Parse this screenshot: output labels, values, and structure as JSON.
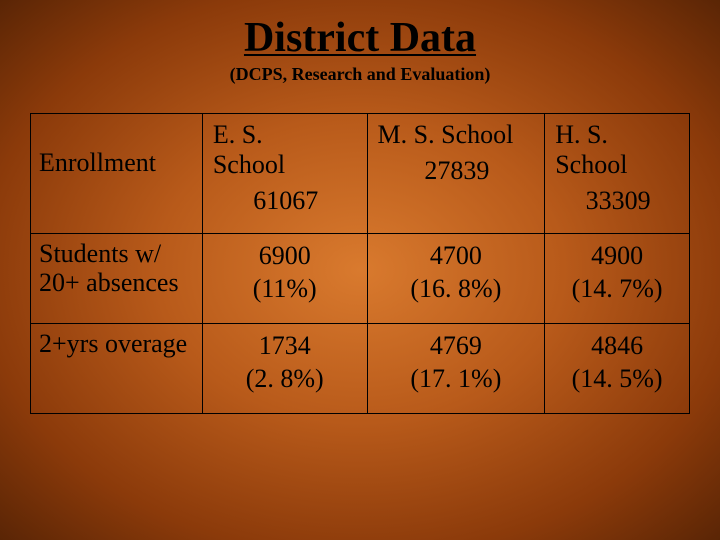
{
  "title": "District Data",
  "subtitle": "(DCPS, Research and Evaluation)",
  "table": {
    "columns": {
      "es": {
        "label": "E. S. School",
        "widthClass": "col-es"
      },
      "ms": {
        "label": "M. S. School",
        "widthClass": "col-ms"
      },
      "hs": {
        "label": "H. S. School",
        "widthClass": "col-hs"
      }
    },
    "rows": {
      "enrollment": {
        "label": "Enrollment",
        "es": "61067",
        "ms": "27839",
        "hs": "33309"
      },
      "absences": {
        "label": "Students w/ 20+ absences",
        "es_n": "6900",
        "es_p": "(11%)",
        "ms_n": "4700",
        "ms_p": "(16. 8%)",
        "hs_n": "4900",
        "hs_p": "(14. 7%)"
      },
      "overage": {
        "label": "2+yrs overage",
        "es_n": "1734",
        "es_p": "(2. 8%)",
        "ms_n": "4769",
        "ms_p": "(17. 1%)",
        "hs_n": "4846",
        "hs_p": "(14. 5%)"
      }
    }
  },
  "style": {
    "title_fontsize": 42,
    "subtitle_fontsize": 18,
    "cell_fontsize": 26,
    "border_color": "#000000",
    "bg_gradient": [
      "#d97a2e",
      "#b85a1a",
      "#8b3a0a",
      "#5a2505"
    ]
  }
}
